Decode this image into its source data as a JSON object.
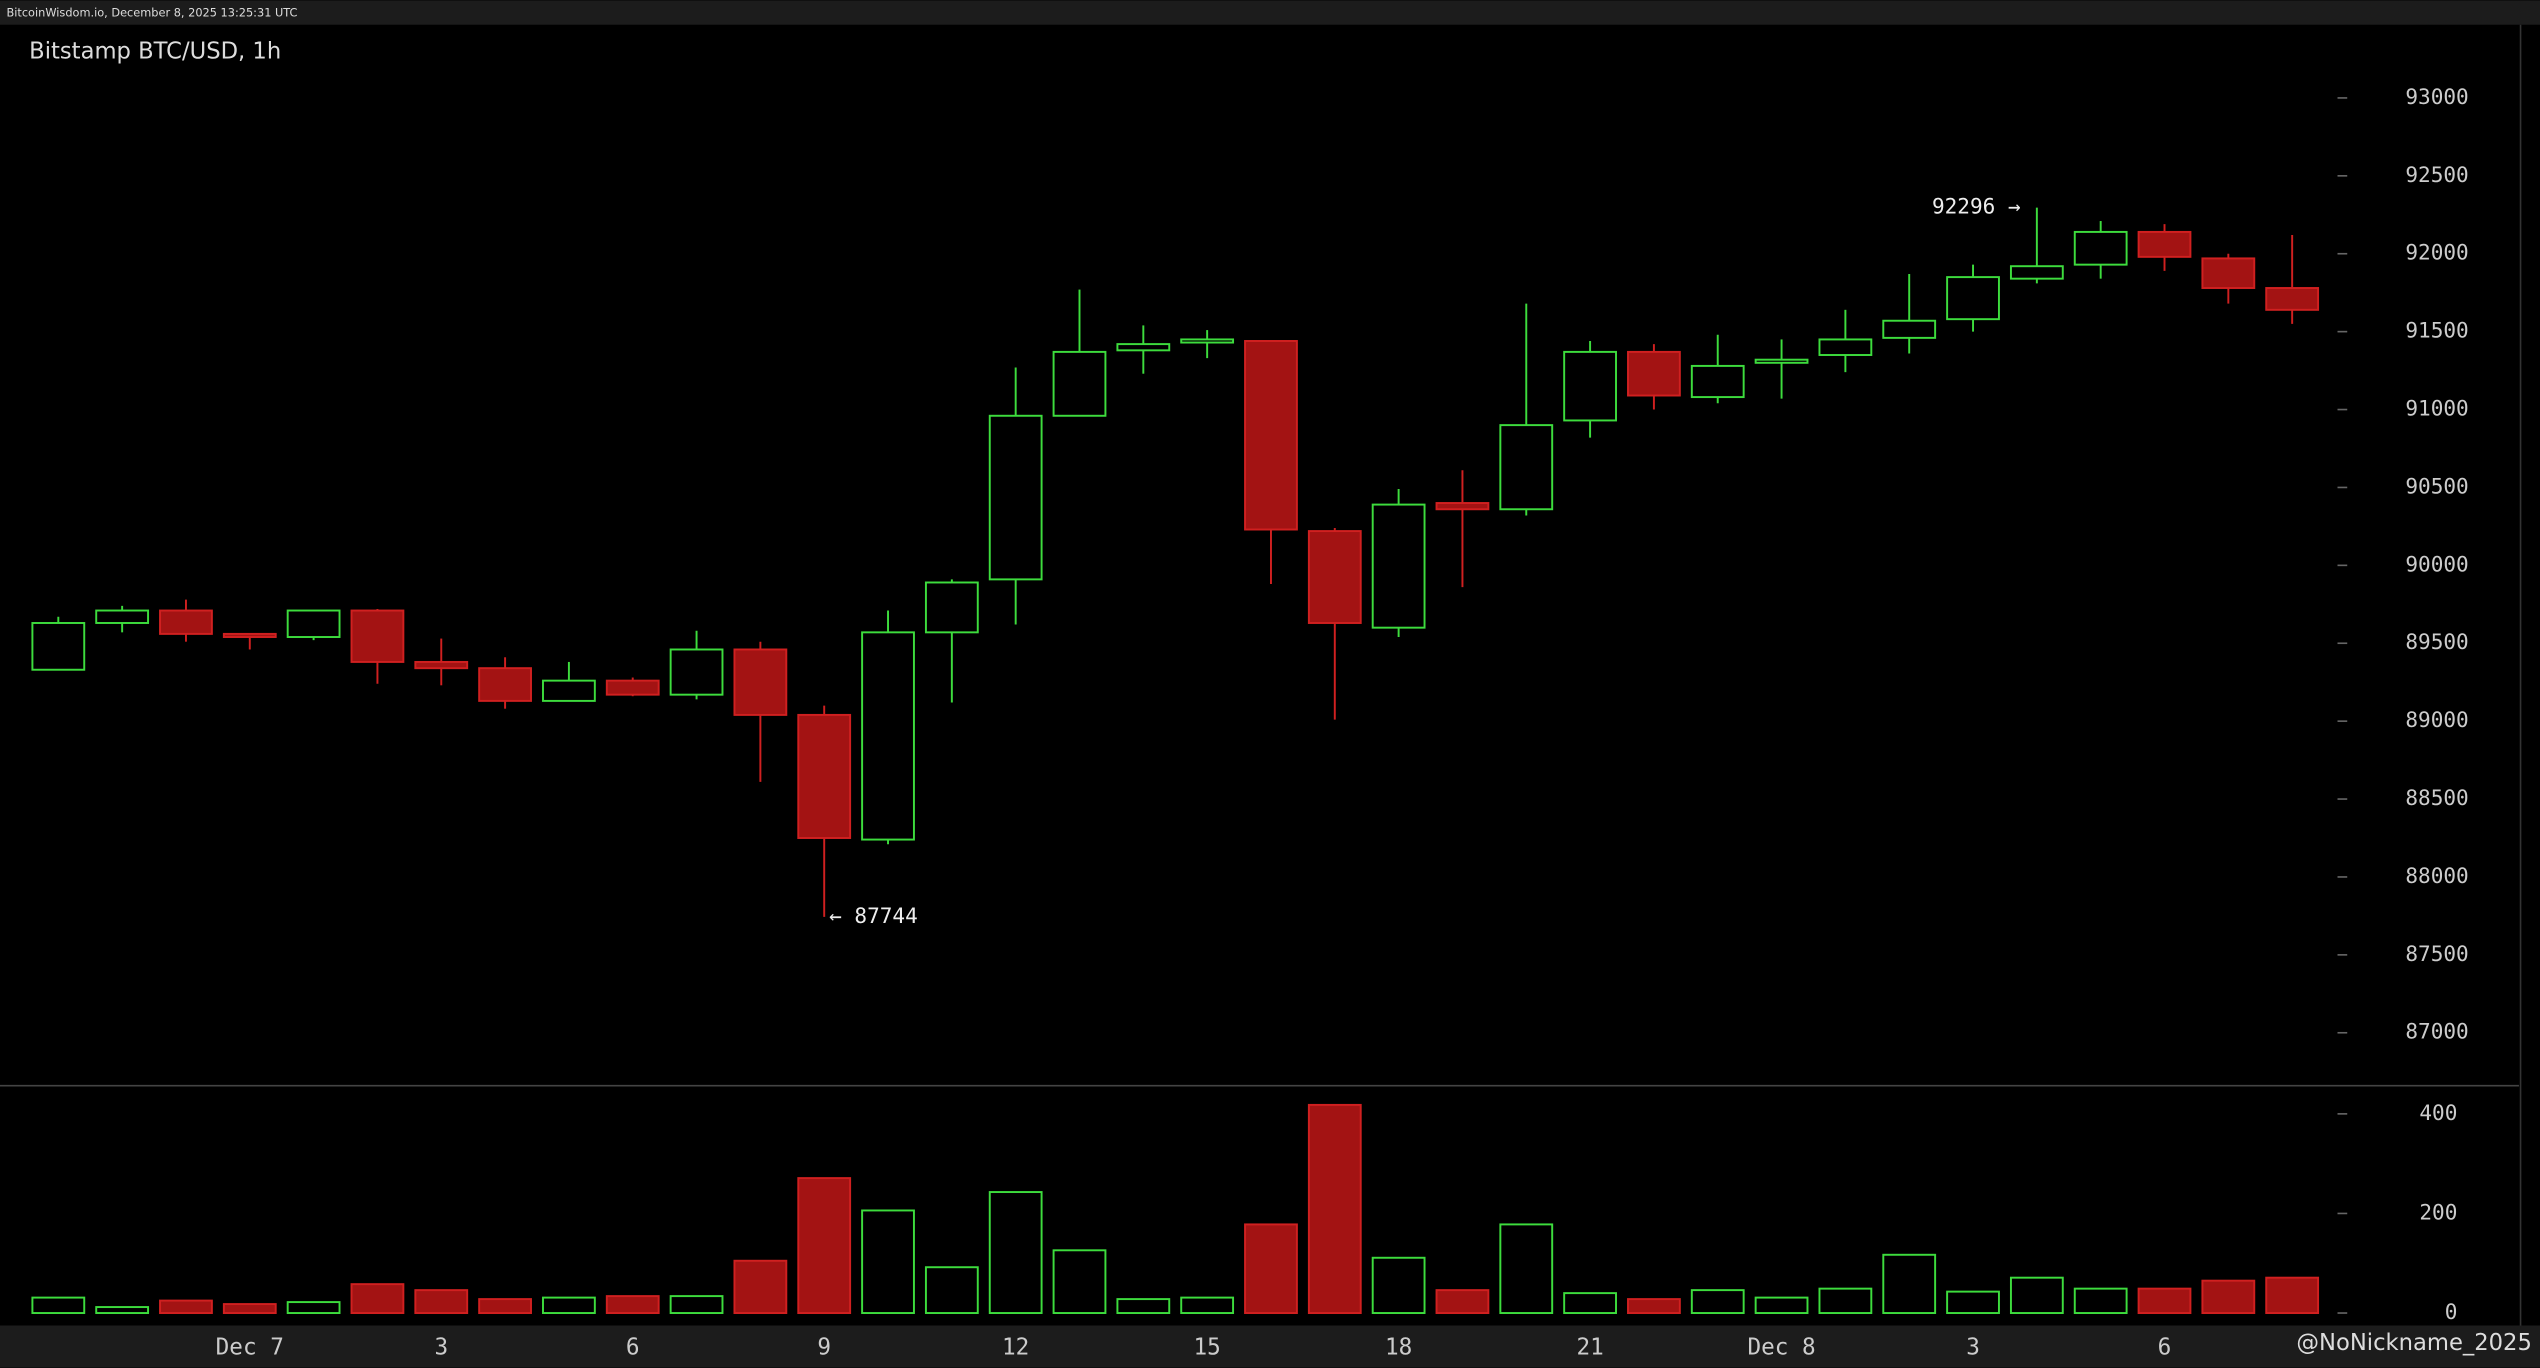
{
  "chart_data": {
    "type": "candlestick",
    "header": "BitcoinWisdom.io, December 8, 2025 13:25:31 UTC",
    "title": "Bitstamp BTC/USD, 1h",
    "watermark": "@NoNickname_2025",
    "categories": [
      null,
      null,
      null,
      "Dec 7",
      null,
      null,
      "3",
      null,
      null,
      "6",
      null,
      null,
      "9",
      null,
      null,
      "12",
      null,
      null,
      "15",
      null,
      null,
      "18",
      null,
      null,
      "21",
      null,
      null,
      "Dec 8",
      null,
      null,
      "3",
      null,
      null,
      "6",
      null,
      null
    ],
    "open": [
      89330,
      89630,
      89710,
      89560,
      89540,
      89710,
      89380,
      89340,
      89130,
      89260,
      89170,
      89460,
      89040,
      88240,
      89570,
      89910,
      90960,
      91380,
      91430,
      91440,
      90220,
      89600,
      90400,
      90360,
      90930,
      91370,
      91080,
      91300,
      91350,
      91460,
      91580,
      91840,
      91930,
      92140,
      91970,
      91780
    ],
    "high": [
      89670,
      89740,
      89780,
      89560,
      89710,
      89720,
      89530,
      89410,
      89380,
      89280,
      89580,
      89510,
      89100,
      89710,
      89910,
      91270,
      91770,
      91540,
      91510,
      91440,
      90240,
      90490,
      90610,
      91680,
      91440,
      91420,
      91480,
      91450,
      91640,
      91870,
      91930,
      92296,
      92210,
      92190,
      92000,
      92120
    ],
    "low": [
      89330,
      89570,
      89510,
      89460,
      89520,
      89240,
      89230,
      89080,
      89130,
      89160,
      89140,
      88610,
      87744,
      88210,
      89120,
      89620,
      90960,
      91230,
      91330,
      89880,
      89010,
      89540,
      89860,
      90320,
      90820,
      91000,
      91040,
      91070,
      91240,
      91360,
      91500,
      91810,
      91840,
      91890,
      91680,
      91550
    ],
    "close": [
      89630,
      89710,
      89560,
      89540,
      89710,
      89380,
      89340,
      89130,
      89260,
      89170,
      89460,
      89040,
      88250,
      89570,
      89890,
      90960,
      91370,
      91420,
      91450,
      90230,
      89630,
      90390,
      90360,
      90900,
      91370,
      91090,
      91280,
      91320,
      91450,
      91570,
      91850,
      91920,
      92140,
      91980,
      91780,
      91640
    ],
    "volume": [
      31,
      12,
      25,
      18,
      22,
      58,
      46,
      28,
      31,
      34,
      34,
      105,
      271,
      206,
      92,
      243,
      126,
      28,
      31,
      178,
      418,
      111,
      46,
      178,
      40,
      28,
      46,
      31,
      49,
      117,
      43,
      71,
      49,
      49,
      65,
      71
    ],
    "annotations": [
      "92296 →",
      "← 87744"
    ],
    "ylim": [
      86660,
      93470
    ],
    "yticks": [
      87000,
      87500,
      88000,
      88500,
      89000,
      89500,
      90000,
      90500,
      91000,
      91500,
      92000,
      92500,
      93000
    ],
    "volume_ylim": [
      -25,
      450
    ],
    "volume_yticks": [
      0,
      200,
      400
    ],
    "up_color": "#3ddc3d",
    "down_color": "#a31313"
  }
}
